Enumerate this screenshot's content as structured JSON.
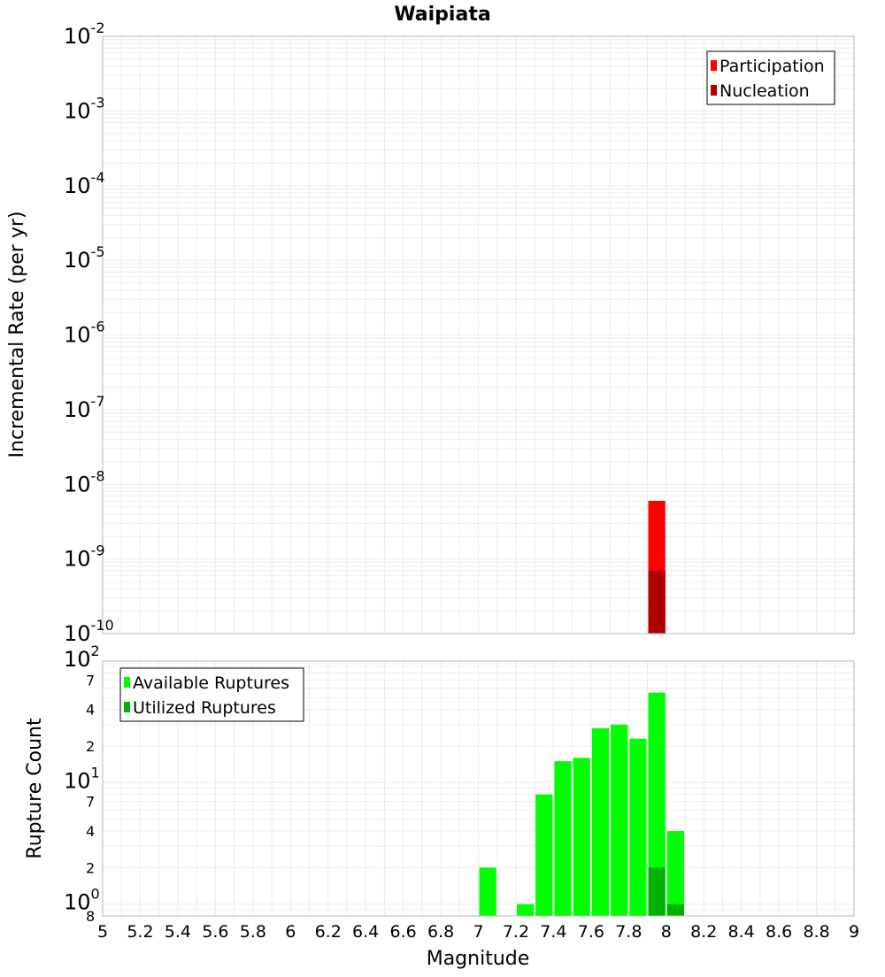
{
  "title": "Waipiata",
  "x_axis": {
    "label": "Magnitude",
    "min": 5,
    "max": 9,
    "tick_labels": [
      "5",
      "5.2",
      "5.4",
      "5.6",
      "5.8",
      "6",
      "6.2",
      "6.4",
      "6.6",
      "6.8",
      "7",
      "7.2",
      "7.4",
      "7.6",
      "7.8",
      "8",
      "8.2",
      "8.4",
      "8.6",
      "8.8",
      "9"
    ]
  },
  "colors": {
    "participation": "#ff0000",
    "nucleation": "#b00000",
    "available": "#00ff00",
    "utilized": "#00b300",
    "grid": "#ececec",
    "frame": "#b8b8b8"
  },
  "chart_data": [
    {
      "type": "bar",
      "name": "rate-panel",
      "ylabel": "Incremental Rate (per yr)",
      "yscale": "log",
      "ylim": [
        1e-10,
        0.01
      ],
      "y_tick_labels": [
        {
          "value": 0.01,
          "base": "10",
          "exp": "-2"
        },
        {
          "value": 0.001,
          "base": "10",
          "exp": "-3"
        },
        {
          "value": 0.0001,
          "base": "10",
          "exp": "-4"
        },
        {
          "value": 1e-05,
          "base": "10",
          "exp": "-5"
        },
        {
          "value": 1e-06,
          "base": "10",
          "exp": "-6"
        },
        {
          "value": 1e-07,
          "base": "10",
          "exp": "-7"
        },
        {
          "value": 1e-08,
          "base": "10",
          "exp": "-8"
        },
        {
          "value": 1e-09,
          "base": "10",
          "exp": "-9"
        },
        {
          "value": 1e-10,
          "base": "10",
          "exp": "-10"
        }
      ],
      "legend": {
        "placement": "top-right",
        "entries": [
          "Participation",
          "Nucleation"
        ]
      },
      "bin_width": 0.1,
      "series": [
        {
          "name": "Participation",
          "x": [
            7.95
          ],
          "values": [
            6e-09
          ]
        },
        {
          "name": "Nucleation",
          "x": [
            7.95
          ],
          "values": [
            7e-10
          ]
        }
      ]
    },
    {
      "type": "bar",
      "name": "count-panel",
      "ylabel": "Rupture Count",
      "yscale": "log",
      "ylim": [
        0.8,
        100
      ],
      "y_tick_labels": [
        {
          "value": 100,
          "base": "10",
          "exp": "2"
        },
        {
          "value": 70,
          "base": "7",
          "exp": ""
        },
        {
          "value": 40,
          "base": "4",
          "exp": ""
        },
        {
          "value": 20,
          "base": "2",
          "exp": ""
        },
        {
          "value": 10,
          "base": "10",
          "exp": "1"
        },
        {
          "value": 7,
          "base": "7",
          "exp": ""
        },
        {
          "value": 4,
          "base": "4",
          "exp": ""
        },
        {
          "value": 2,
          "base": "2",
          "exp": ""
        },
        {
          "value": 1,
          "base": "10",
          "exp": "0"
        },
        {
          "value": 0.8,
          "base": "8",
          "exp": ""
        }
      ],
      "legend": {
        "placement": "top-left",
        "entries": [
          "Available Ruptures",
          "Utilized Ruptures"
        ]
      },
      "bin_width": 0.1,
      "series": [
        {
          "name": "Available Ruptures",
          "x": [
            7.05,
            7.25,
            7.35,
            7.45,
            7.55,
            7.65,
            7.75,
            7.85,
            7.95,
            8.05
          ],
          "values": [
            2,
            1,
            8,
            15,
            16,
            28,
            30,
            23,
            55,
            4
          ]
        },
        {
          "name": "Utilized Ruptures",
          "x": [
            7.95,
            8.05
          ],
          "values": [
            2,
            1
          ]
        }
      ]
    }
  ]
}
